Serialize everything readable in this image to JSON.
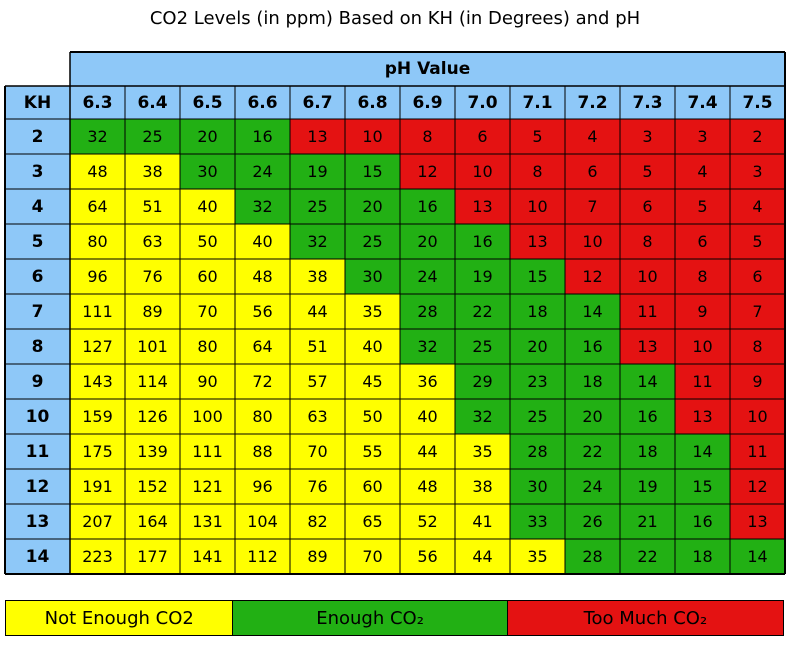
{
  "chart_data": {
    "type": "table",
    "title": "CO2 Levels (in ppm) Based on KH (in Degrees) and pH",
    "column_group_label": "pH Value",
    "row_header_label": "KH",
    "ph_values": [
      "6.3",
      "6.4",
      "6.5",
      "6.6",
      "6.7",
      "6.8",
      "6.9",
      "7.0",
      "7.1",
      "7.2",
      "7.3",
      "7.4",
      "7.5"
    ],
    "kh_values": [
      "2",
      "3",
      "4",
      "5",
      "6",
      "7",
      "8",
      "9",
      "10",
      "11",
      "12",
      "13",
      "14"
    ],
    "rows": [
      [
        32,
        25,
        20,
        16,
        13,
        10,
        8,
        6,
        5,
        4,
        3,
        3,
        2
      ],
      [
        48,
        38,
        30,
        24,
        19,
        15,
        12,
        10,
        8,
        6,
        5,
        4,
        3
      ],
      [
        64,
        51,
        40,
        32,
        25,
        20,
        16,
        13,
        10,
        7,
        6,
        5,
        4
      ],
      [
        80,
        63,
        50,
        40,
        32,
        25,
        20,
        16,
        13,
        10,
        8,
        6,
        5
      ],
      [
        96,
        76,
        60,
        48,
        38,
        30,
        24,
        19,
        15,
        12,
        10,
        8,
        6
      ],
      [
        111,
        89,
        70,
        56,
        44,
        35,
        28,
        22,
        18,
        14,
        11,
        9,
        7
      ],
      [
        127,
        101,
        80,
        64,
        51,
        40,
        32,
        25,
        20,
        16,
        13,
        10,
        8
      ],
      [
        143,
        114,
        90,
        72,
        57,
        45,
        36,
        29,
        23,
        18,
        14,
        11,
        9
      ],
      [
        159,
        126,
        100,
        80,
        63,
        50,
        40,
        32,
        25,
        20,
        16,
        13,
        10
      ],
      [
        175,
        139,
        111,
        88,
        70,
        55,
        44,
        35,
        28,
        22,
        18,
        14,
        11
      ],
      [
        191,
        152,
        121,
        96,
        76,
        60,
        48,
        38,
        30,
        24,
        19,
        15,
        12
      ],
      [
        207,
        164,
        131,
        104,
        82,
        65,
        52,
        41,
        33,
        26,
        21,
        16,
        13
      ],
      [
        223,
        177,
        141,
        112,
        89,
        70,
        56,
        44,
        35,
        28,
        22,
        18,
        14
      ]
    ],
    "categories": [
      {
        "key": "low",
        "label": "Not Enough CO2",
        "color": "#ffff00",
        "text_color": "#000000"
      },
      {
        "key": "ok",
        "label": "Enough CO₂",
        "color": "#22b014",
        "text_color": "#000000"
      },
      {
        "key": "high",
        "label": "Too Much CO₂",
        "color": "#e41212",
        "text_color": "#000000"
      }
    ],
    "header_color": "#8ec8f8",
    "category_by_cell": [
      [
        "ok",
        "ok",
        "ok",
        "ok",
        "high",
        "high",
        "high",
        "high",
        "high",
        "high",
        "high",
        "high",
        "high"
      ],
      [
        "low",
        "low",
        "ok",
        "ok",
        "ok",
        "ok",
        "high",
        "high",
        "high",
        "high",
        "high",
        "high",
        "high"
      ],
      [
        "low",
        "low",
        "low",
        "ok",
        "ok",
        "ok",
        "ok",
        "high",
        "high",
        "high",
        "high",
        "high",
        "high"
      ],
      [
        "low",
        "low",
        "low",
        "low",
        "ok",
        "ok",
        "ok",
        "ok",
        "high",
        "high",
        "high",
        "high",
        "high"
      ],
      [
        "low",
        "low",
        "low",
        "low",
        "low",
        "ok",
        "ok",
        "ok",
        "ok",
        "high",
        "high",
        "high",
        "high"
      ],
      [
        "low",
        "low",
        "low",
        "low",
        "low",
        "low",
        "ok",
        "ok",
        "ok",
        "ok",
        "high",
        "high",
        "high"
      ],
      [
        "low",
        "low",
        "low",
        "low",
        "low",
        "low",
        "ok",
        "ok",
        "ok",
        "ok",
        "high",
        "high",
        "high"
      ],
      [
        "low",
        "low",
        "low",
        "low",
        "low",
        "low",
        "low",
        "ok",
        "ok",
        "ok",
        "ok",
        "high",
        "high"
      ],
      [
        "low",
        "low",
        "low",
        "low",
        "low",
        "low",
        "low",
        "ok",
        "ok",
        "ok",
        "ok",
        "high",
        "high"
      ],
      [
        "low",
        "low",
        "low",
        "low",
        "low",
        "low",
        "low",
        "low",
        "ok",
        "ok",
        "ok",
        "ok",
        "high"
      ],
      [
        "low",
        "low",
        "low",
        "low",
        "low",
        "low",
        "low",
        "low",
        "ok",
        "ok",
        "ok",
        "ok",
        "high"
      ],
      [
        "low",
        "low",
        "low",
        "low",
        "low",
        "low",
        "low",
        "low",
        "ok",
        "ok",
        "ok",
        "ok",
        "high"
      ],
      [
        "low",
        "low",
        "low",
        "low",
        "low",
        "low",
        "low",
        "low",
        "low",
        "ok",
        "ok",
        "ok",
        "ok"
      ]
    ]
  }
}
